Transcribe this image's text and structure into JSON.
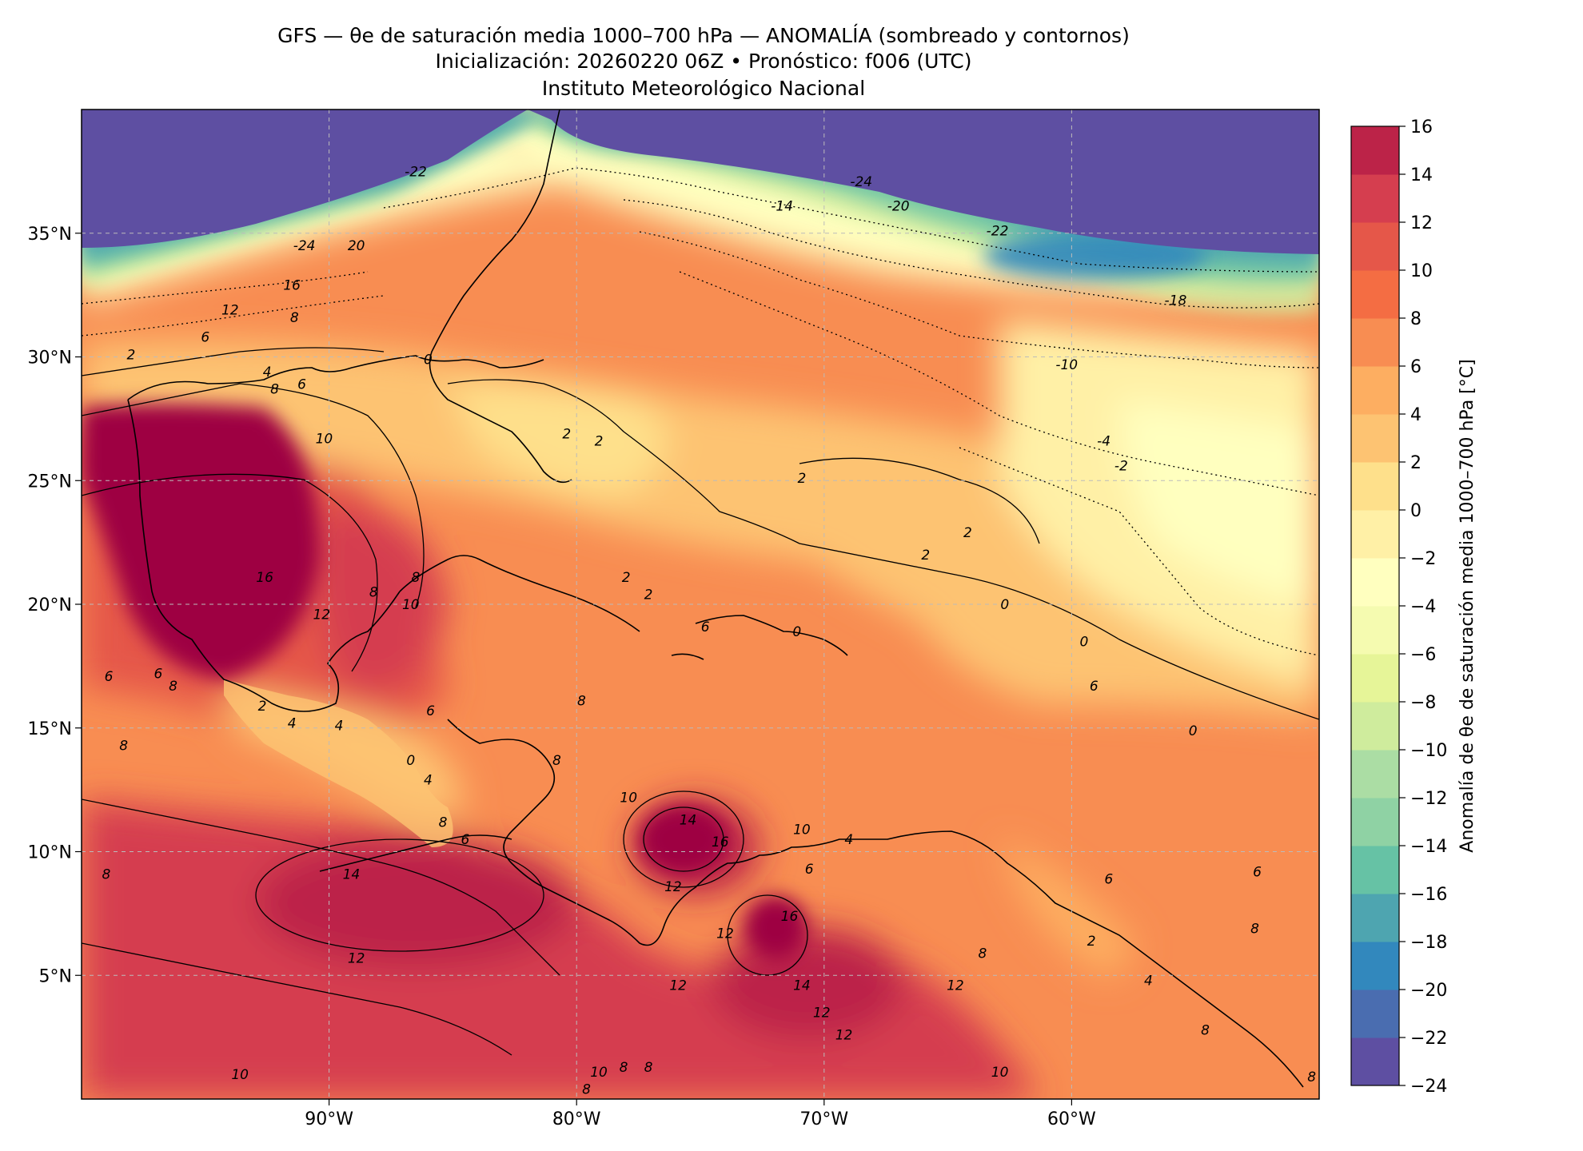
{
  "header": {
    "line1": "GFS — θe de saturación media 1000–700 hPa — ANOMALÍA (sombreado y contornos)",
    "line2": "Inicialización: 20260220 06Z   •   Pronóstico: f006 (UTC)",
    "line3": "Instituto Meteorológico Nacional"
  },
  "map": {
    "lon_range": [
      -100,
      -50
    ],
    "lat_range": [
      0,
      40
    ],
    "lon_ticks": [
      {
        "value": -90,
        "label": "90°W"
      },
      {
        "value": -80,
        "label": "80°W"
      },
      {
        "value": -70,
        "label": "70°W"
      },
      {
        "value": -60,
        "label": "60°W"
      }
    ],
    "lat_ticks": [
      {
        "value": 35,
        "label": "35°N"
      },
      {
        "value": 30,
        "label": "30°N"
      },
      {
        "value": 25,
        "label": "25°N"
      },
      {
        "value": 20,
        "label": "20°N"
      },
      {
        "value": 15,
        "label": "15°N"
      },
      {
        "value": 10,
        "label": "10°N"
      },
      {
        "value": 5,
        "label": "5°N"
      }
    ],
    "gridlines": true,
    "contour_labels": [
      {
        "text": "-24",
        "lon": -91,
        "lat": 34.5
      },
      {
        "text": "20",
        "lon": -88.9,
        "lat": 34.5
      },
      {
        "text": "16",
        "lon": -91.5,
        "lat": 32.9
      },
      {
        "text": "12",
        "lon": -94,
        "lat": 31.9
      },
      {
        "text": "8",
        "lon": -91.4,
        "lat": 31.6
      },
      {
        "text": "6",
        "lon": -95,
        "lat": 30.8
      },
      {
        "text": "2",
        "lon": -98,
        "lat": 30.1
      },
      {
        "text": "0",
        "lon": -86,
        "lat": 29.9
      },
      {
        "text": "-22",
        "lon": -86.5,
        "lat": 37.5
      },
      {
        "text": "-24",
        "lon": -68.5,
        "lat": 37.1
      },
      {
        "text": "-14",
        "lon": -71.7,
        "lat": 36.1
      },
      {
        "text": "-20",
        "lon": -67,
        "lat": 36.1
      },
      {
        "text": "-22",
        "lon": -63,
        "lat": 35.1
      },
      {
        "text": "-18",
        "lon": -55.8,
        "lat": 32.3
      },
      {
        "text": "-10",
        "lon": -60.2,
        "lat": 29.7
      },
      {
        "text": "-4",
        "lon": -58.7,
        "lat": 26.6
      },
      {
        "text": "-2",
        "lon": -58,
        "lat": 25.6
      },
      {
        "text": "4",
        "lon": -92.5,
        "lat": 29.4
      },
      {
        "text": "6",
        "lon": -91.1,
        "lat": 28.9
      },
      {
        "text": "8",
        "lon": -92.2,
        "lat": 28.7
      },
      {
        "text": "10",
        "lon": -90.2,
        "lat": 26.7
      },
      {
        "text": "16",
        "lon": -92.6,
        "lat": 21.1
      },
      {
        "text": "2",
        "lon": -80.4,
        "lat": 26.9
      },
      {
        "text": "2",
        "lon": -79.1,
        "lat": 26.6
      },
      {
        "text": "2",
        "lon": -70.9,
        "lat": 25.1
      },
      {
        "text": "2",
        "lon": -64.2,
        "lat": 22.9
      },
      {
        "text": "2",
        "lon": -65.9,
        "lat": 22.0
      },
      {
        "text": "2",
        "lon": -78,
        "lat": 21.1
      },
      {
        "text": "2",
        "lon": -77.1,
        "lat": 20.4
      },
      {
        "text": "0",
        "lon": -62.7,
        "lat": 20.0
      },
      {
        "text": "0",
        "lon": -71.1,
        "lat": 18.9
      },
      {
        "text": "0",
        "lon": -59.5,
        "lat": 18.5
      },
      {
        "text": "6",
        "lon": -74.8,
        "lat": 19.1
      },
      {
        "text": "6",
        "lon": -59.1,
        "lat": 16.7
      },
      {
        "text": "0",
        "lon": -55.1,
        "lat": 14.9
      },
      {
        "text": "8",
        "lon": -88.2,
        "lat": 20.5
      },
      {
        "text": "8",
        "lon": -86.5,
        "lat": 21.1
      },
      {
        "text": "10",
        "lon": -86.7,
        "lat": 20.0
      },
      {
        "text": "12",
        "lon": -90.3,
        "lat": 19.6
      },
      {
        "text": "6",
        "lon": -98.9,
        "lat": 17.1
      },
      {
        "text": "6",
        "lon": -96.9,
        "lat": 17.2
      },
      {
        "text": "8",
        "lon": -96.3,
        "lat": 16.7
      },
      {
        "text": "2",
        "lon": -92.7,
        "lat": 15.9
      },
      {
        "text": "4",
        "lon": -91.5,
        "lat": 15.2
      },
      {
        "text": "4",
        "lon": -89.6,
        "lat": 15.1
      },
      {
        "text": "6",
        "lon": -85.9,
        "lat": 15.7
      },
      {
        "text": "0",
        "lon": -86.7,
        "lat": 13.7
      },
      {
        "text": "4",
        "lon": -86,
        "lat": 12.9
      },
      {
        "text": "8",
        "lon": -98.3,
        "lat": 14.3
      },
      {
        "text": "8",
        "lon": -79.8,
        "lat": 16.1
      },
      {
        "text": "8",
        "lon": -80.8,
        "lat": 13.7
      },
      {
        "text": "8",
        "lon": -85.4,
        "lat": 11.2
      },
      {
        "text": "6",
        "lon": -84.5,
        "lat": 10.5
      },
      {
        "text": "10",
        "lon": -77.9,
        "lat": 12.2
      },
      {
        "text": "14",
        "lon": -75.5,
        "lat": 11.3
      },
      {
        "text": "16",
        "lon": -74.2,
        "lat": 10.4
      },
      {
        "text": "12",
        "lon": -76.1,
        "lat": 8.6
      },
      {
        "text": "10",
        "lon": -70.9,
        "lat": 10.9
      },
      {
        "text": "6",
        "lon": -70.6,
        "lat": 9.3
      },
      {
        "text": "4",
        "lon": -69,
        "lat": 10.5
      },
      {
        "text": "16",
        "lon": -71.4,
        "lat": 7.4
      },
      {
        "text": "12",
        "lon": -74,
        "lat": 6.7
      },
      {
        "text": "14",
        "lon": -70.9,
        "lat": 4.6
      },
      {
        "text": "12",
        "lon": -70.1,
        "lat": 3.5
      },
      {
        "text": "12",
        "lon": -69.2,
        "lat": 2.6
      },
      {
        "text": "12",
        "lon": -64.7,
        "lat": 4.6
      },
      {
        "text": "8",
        "lon": -63.6,
        "lat": 5.9
      },
      {
        "text": "2",
        "lon": -59.2,
        "lat": 6.4
      },
      {
        "text": "4",
        "lon": -56.9,
        "lat": 4.8
      },
      {
        "text": "8",
        "lon": -54.6,
        "lat": 2.8
      },
      {
        "text": "6",
        "lon": -58.5,
        "lat": 8.9
      },
      {
        "text": "6",
        "lon": -52.5,
        "lat": 9.2
      },
      {
        "text": "8",
        "lon": -52.6,
        "lat": 6.9
      },
      {
        "text": "14",
        "lon": -89.1,
        "lat": 9.1
      },
      {
        "text": "12",
        "lon": -88.9,
        "lat": 5.7
      },
      {
        "text": "8",
        "lon": -99,
        "lat": 9.1
      },
      {
        "text": "10",
        "lon": -93.6,
        "lat": 1.0
      },
      {
        "text": "12",
        "lon": -75.9,
        "lat": 4.6
      },
      {
        "text": "10",
        "lon": -79.1,
        "lat": 1.1
      },
      {
        "text": "8",
        "lon": -78.1,
        "lat": 1.3
      },
      {
        "text": "8",
        "lon": -79.6,
        "lat": 0.4
      },
      {
        "text": "8",
        "lon": -77.1,
        "lat": 1.3
      },
      {
        "text": "10",
        "lon": -62.9,
        "lat": 1.1
      },
      {
        "text": "8",
        "lon": -50.3,
        "lat": 0.9
      }
    ]
  },
  "colorbar": {
    "label": "Anomalía de θe de saturación media 1000–700 hPa [°C]",
    "levels": [
      -24,
      -22,
      -20,
      -18,
      -16,
      -14,
      -12,
      -10,
      -8,
      -6,
      -4,
      -2,
      0,
      2,
      4,
      6,
      8,
      10,
      12,
      14,
      16
    ],
    "tick_labels": [
      "−24",
      "−22",
      "−20",
      "−18",
      "−16",
      "−14",
      "−12",
      "−10",
      "−8",
      "−6",
      "−4",
      "−2",
      "0",
      "2",
      "4",
      "6",
      "8",
      "10",
      "12",
      "14",
      "16"
    ],
    "colors": [
      "#5e4fa2",
      "#4a6db0",
      "#3288bd",
      "#4ea5b0",
      "#66c2a5",
      "#8fd2a4",
      "#abdda4",
      "#cfec9d",
      "#e6f598",
      "#f5fbb0",
      "#ffffbf",
      "#fff0a6",
      "#fee08b",
      "#fdc372",
      "#fdae61",
      "#f88d52",
      "#f46d43",
      "#e55749",
      "#d53e4f",
      "#bc2348",
      "#9e0142"
    ]
  }
}
